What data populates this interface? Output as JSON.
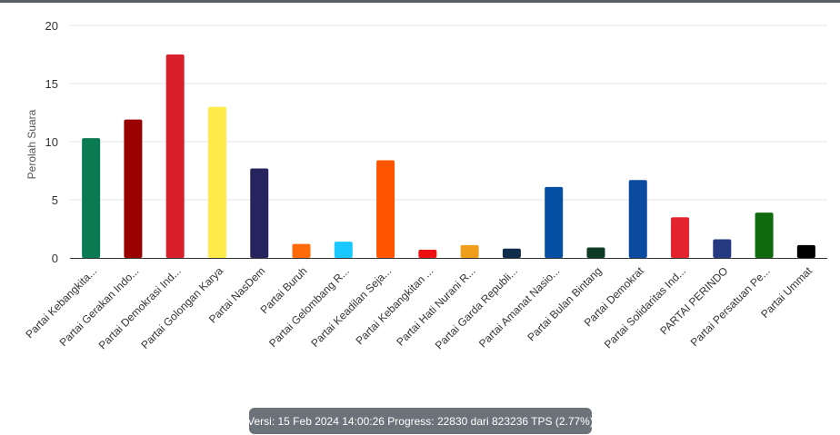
{
  "chart_data": {
    "type": "bar",
    "ylabel": "Perolah Suara",
    "ylim": [
      0,
      20
    ],
    "yticks": [
      0,
      5,
      10,
      15,
      20
    ],
    "grid": true,
    "legend": "none",
    "categories": [
      "Partai Kebangkita...",
      "Partai Gerakan Indo...",
      "Partai Demokrasi Ind...",
      "Partai Golongan Karya",
      "Partai NasDem",
      "Partai Buruh",
      "Partai Gelombang R...",
      "Partai Keadilan Seja...",
      "Partai Kebangkitan ...",
      "Partai Hati Nurani R...",
      "Partai Garda Republi...",
      "Partai Amanat Nasio...",
      "Partai Bulan Bintang",
      "Partai Demokrat",
      "Partai Solidaritas Ind...",
      "PARTAI PERINDO",
      "Partai Persatuan Pe...",
      "Partai Ummat"
    ],
    "values": [
      10.3,
      11.9,
      17.5,
      13.0,
      7.7,
      1.2,
      1.4,
      8.4,
      0.7,
      1.1,
      0.8,
      6.1,
      0.9,
      6.7,
      3.5,
      1.6,
      3.9,
      1.1
    ],
    "colors": [
      "#0a7a52",
      "#990000",
      "#d81f2a",
      "#ffec4a",
      "#25245f",
      "#ff6b0a",
      "#19c8ff",
      "#ff5500",
      "#ee1111",
      "#ef9e1c",
      "#0f2c4c",
      "#0550a5",
      "#0f3b24",
      "#0a4ba0",
      "#e3242e",
      "#253a80",
      "#0d6b0d",
      "#000000"
    ]
  },
  "footer": {
    "version_text": "Versi: 15 Feb 2024 14:00:26 Progress: 22830 dari 823236 TPS (2.77%)"
  }
}
